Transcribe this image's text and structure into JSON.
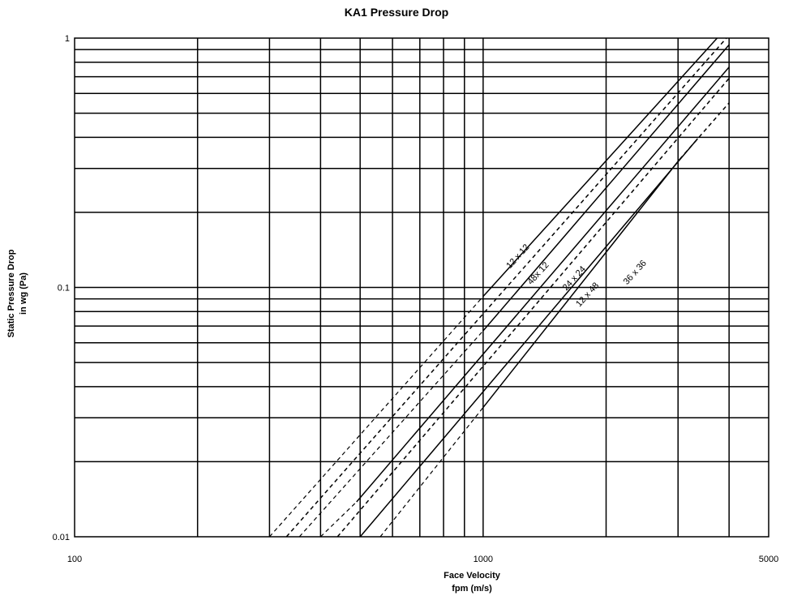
{
  "chart_data": {
    "type": "line",
    "title": "KA1 Pressure Drop",
    "xlabel": [
      "Face Velocity",
      "fpm (m/s)"
    ],
    "ylabel": [
      "Static Pressure Drop",
      "in wg (Pa)"
    ],
    "xscale": "log",
    "yscale": "log",
    "xlim": [
      100,
      5000
    ],
    "ylim": [
      0.01,
      1
    ],
    "x_ticks": [
      100,
      1000,
      5000
    ],
    "x_tick_labels": [
      "100",
      "1000",
      "5000"
    ],
    "y_ticks": [
      0.01,
      0.1,
      1
    ],
    "y_tick_labels": [
      "0.01",
      "0.1",
      "1"
    ],
    "x_gridlines": [
      200,
      300,
      400,
      500,
      600,
      700,
      800,
      900,
      1000,
      2000,
      3000,
      4000
    ],
    "y_gridlines": [
      0.02,
      0.03,
      0.04,
      0.05,
      0.06,
      0.07,
      0.08,
      0.09,
      0.1,
      0.2,
      0.3,
      0.4,
      0.5,
      0.6,
      0.7,
      0.8,
      0.9
    ],
    "grid": true,
    "legend": "none",
    "series": [
      {
        "name": "12 x 12",
        "style": "solid",
        "points": [
          [
            1000,
            0.092
          ],
          [
            3740,
            1.0
          ]
        ],
        "dashed_extension": [
          [
            300,
            0.01
          ],
          [
            1000,
            0.092
          ]
        ]
      },
      {
        "name": "",
        "style": "dashed",
        "points": [
          [
            330,
            0.01
          ],
          [
            3940,
            1.0
          ]
        ]
      },
      {
        "name": "48x 12",
        "style": "solid",
        "points": [
          [
            1000,
            0.067
          ],
          [
            4000,
            0.94
          ]
        ],
        "dashed_extension": [
          [
            355,
            0.01
          ],
          [
            1000,
            0.067
          ]
        ]
      },
      {
        "name": "24 x 24",
        "style": "solid",
        "points": [
          [
            490,
            0.0138
          ],
          [
            4000,
            0.765
          ]
        ],
        "dashed_extension": [
          [
            400,
            0.01
          ],
          [
            490,
            0.0138
          ]
        ]
      },
      {
        "name": "",
        "style": "dashed",
        "points": [
          [
            440,
            0.01
          ],
          [
            4000,
            0.69
          ]
        ]
      },
      {
        "name": "12 x 48",
        "style": "solid",
        "points": [
          [
            500,
            0.01
          ],
          [
            3350,
            0.395
          ]
        ]
      },
      {
        "name": "36 x 36",
        "style": "solid",
        "points": [
          [
            1000,
            0.033
          ],
          [
            3030,
            0.327
          ]
        ],
        "dashed_extension": [
          [
            560,
            0.01
          ],
          [
            1000,
            0.033
          ]
        ]
      },
      {
        "name": "",
        "style": "dashed",
        "points": [
          [
            3030,
            0.327
          ],
          [
            4000,
            0.55
          ]
        ]
      }
    ],
    "series_label_positions": [
      {
        "name": "12 x 12",
        "x": 1230,
        "y": 0.131
      },
      {
        "name": "48x 12",
        "x": 1380,
        "y": 0.112
      },
      {
        "name": "24 x 24",
        "x": 1690,
        "y": 0.107
      },
      {
        "name": "12 x 48",
        "x": 1820,
        "y": 0.092
      },
      {
        "name": "36 x 36",
        "x": 2380,
        "y": 0.113
      }
    ]
  }
}
